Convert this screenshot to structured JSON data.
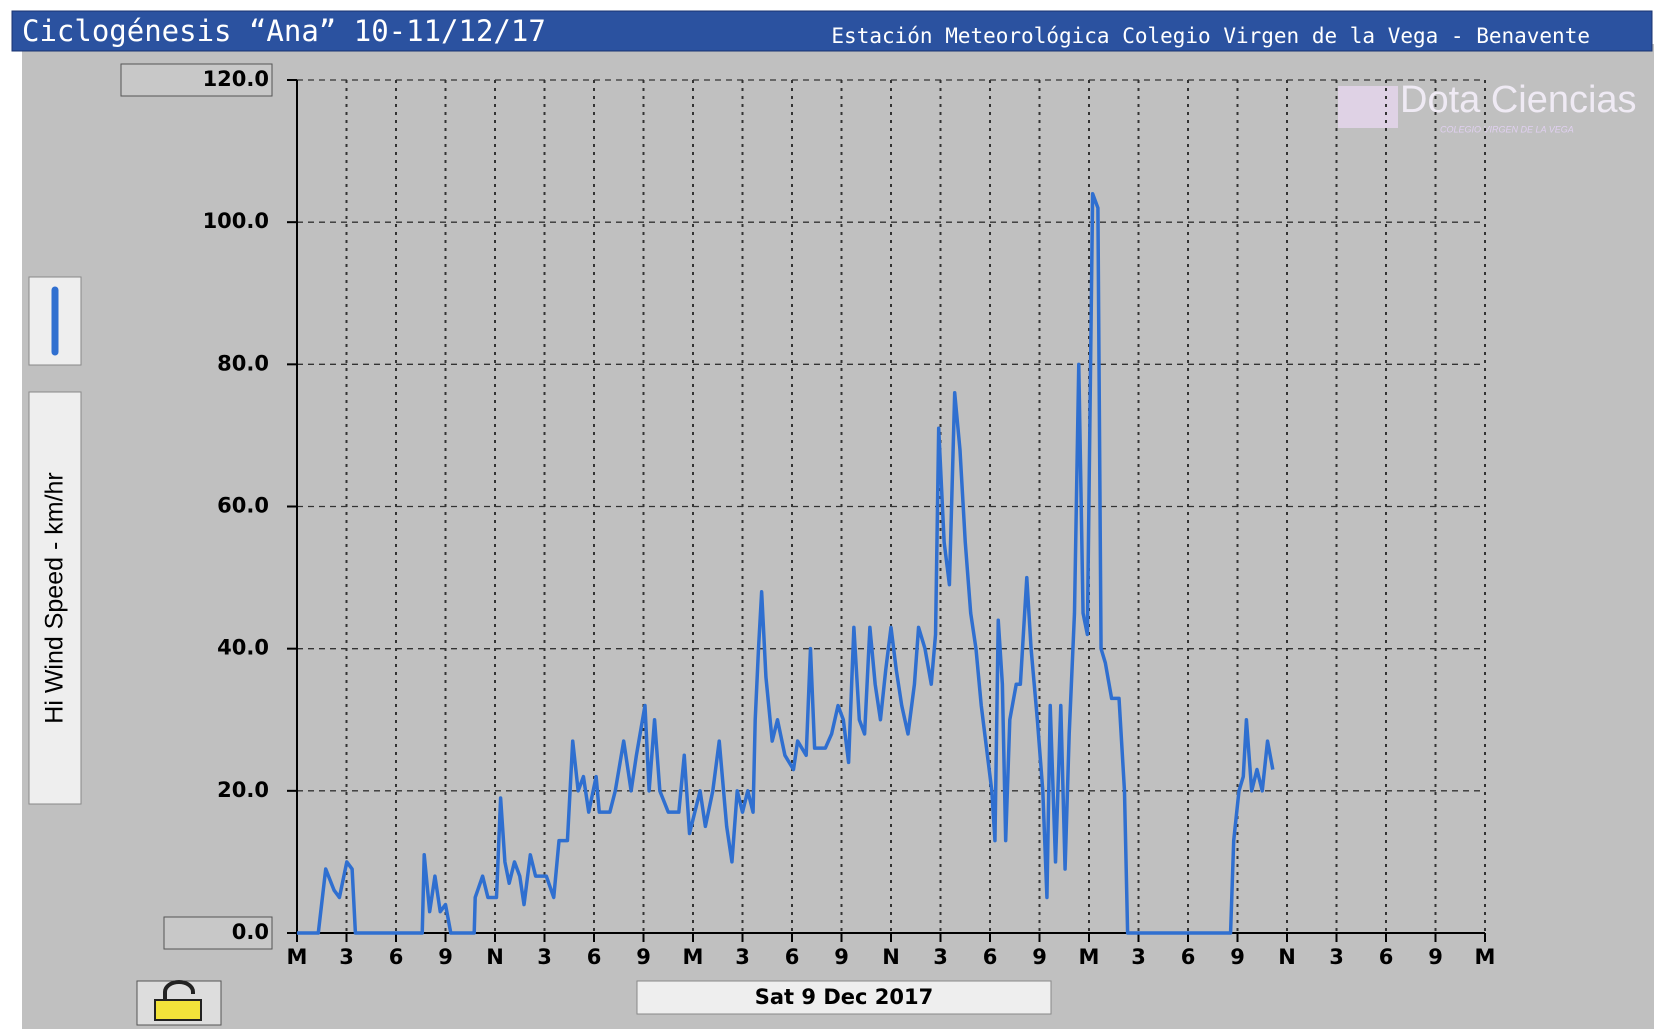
{
  "chart_data": {
    "type": "line",
    "title": "Ciclogénesis “Ana” 10-11/12/17",
    "subtitle": "Estación Meteorológica Colegio Virgen de la Vega - Benavente",
    "y_label": "Hi Wind Speed - km/hr",
    "x_label": "Sat 9 Dec 2017",
    "logo": "Dota Ciencias",
    "logo_sub": "COLEGIO VIRGEN DE LA VEGA",
    "color": "#2f6fd0",
    "grid": true,
    "xlim": [
      0,
      72
    ],
    "ylim": [
      0,
      120
    ],
    "yticks": [
      {
        "value": 0,
        "label": "0.0"
      },
      {
        "value": 20,
        "label": "20.0"
      },
      {
        "value": 40,
        "label": "40.0"
      },
      {
        "value": 60,
        "label": "60.0"
      },
      {
        "value": 80,
        "label": "80.0"
      },
      {
        "value": 100,
        "label": "100.0"
      },
      {
        "value": 120,
        "label": "120.0"
      }
    ],
    "xticks": [
      {
        "value": 0,
        "label": "M"
      },
      {
        "value": 3,
        "label": "3"
      },
      {
        "value": 6,
        "label": "6"
      },
      {
        "value": 9,
        "label": "9"
      },
      {
        "value": 12,
        "label": "N"
      },
      {
        "value": 15,
        "label": "3"
      },
      {
        "value": 18,
        "label": "6"
      },
      {
        "value": 21,
        "label": "9"
      },
      {
        "value": 24,
        "label": "M"
      },
      {
        "value": 27,
        "label": "3"
      },
      {
        "value": 30,
        "label": "6"
      },
      {
        "value": 33,
        "label": "9"
      },
      {
        "value": 36,
        "label": "N"
      },
      {
        "value": 39,
        "label": "3"
      },
      {
        "value": 42,
        "label": "6"
      },
      {
        "value": 45,
        "label": "9"
      },
      {
        "value": 48,
        "label": "M"
      },
      {
        "value": 51,
        "label": "3"
      },
      {
        "value": 54,
        "label": "6"
      },
      {
        "value": 57,
        "label": "9"
      },
      {
        "value": 60,
        "label": "N"
      },
      {
        "value": 63,
        "label": "3"
      },
      {
        "value": 66,
        "label": "6"
      },
      {
        "value": 69,
        "label": "9"
      },
      {
        "value": 72,
        "label": "M"
      }
    ],
    "x": [
      0,
      1.29,
      1.74,
      2.25,
      2.57,
      3.02,
      3.34,
      3.54,
      7.59,
      7.71,
      8.04,
      8.36,
      8.68,
      9.0,
      9.32,
      10.74,
      10.8,
      11.25,
      11.57,
      12.09,
      12.34,
      12.6,
      12.86,
      13.18,
      13.5,
      13.76,
      14.14,
      14.46,
      15.11,
      15.56,
      15.88,
      16.39,
      16.71,
      17.04,
      17.36,
      17.68,
      18.13,
      18.32,
      18.96,
      19.29,
      19.8,
      20.25,
      20.57,
      21.09,
      21.34,
      21.67,
      21.99,
      22.5,
      23.14,
      23.47,
      23.79,
      24.43,
      24.75,
      25.2,
      25.59,
      26.04,
      26.36,
      26.68,
      27.0,
      27.32,
      27.64,
      27.77,
      27.97,
      28.16,
      28.42,
      28.8,
      29.12,
      29.57,
      30.09,
      30.34,
      30.86,
      31.12,
      31.37,
      32.02,
      32.4,
      32.79,
      33.11,
      33.43,
      33.75,
      34.08,
      34.4,
      34.72,
      35.04,
      35.36,
      35.68,
      36.0,
      36.32,
      36.65,
      37.03,
      37.42,
      37.67,
      38.06,
      38.44,
      38.7,
      38.89,
      39.22,
      39.54,
      39.86,
      40.18,
      40.5,
      40.83,
      41.15,
      41.47,
      41.79,
      42.11,
      42.3,
      42.5,
      42.75,
      42.95,
      43.2,
      43.59,
      43.84,
      44.23,
      44.49,
      44.87,
      45.2,
      45.45,
      45.65,
      45.97,
      46.29,
      46.55,
      46.8,
      47.12,
      47.38,
      47.64,
      47.9,
      48.22,
      48.54,
      48.73,
      48.99,
      49.37,
      49.82,
      50.15,
      50.34,
      56.58,
      56.77,
      57.09,
      57.35,
      57.54,
      57.86,
      58.18,
      58.5,
      58.82,
      59.14
    ],
    "values": [
      0,
      0,
      9,
      6,
      5,
      10,
      9,
      0,
      0,
      11,
      3,
      8,
      3,
      4,
      0,
      0,
      5,
      8,
      5,
      5,
      19,
      10,
      7,
      10,
      8,
      4,
      11,
      8,
      8,
      5,
      13,
      13,
      27,
      20,
      22,
      17,
      22,
      17,
      17,
      20,
      27,
      20,
      25,
      32,
      20,
      30,
      20,
      17,
      17,
      25,
      14,
      20,
      15,
      20,
      27,
      15,
      10,
      20,
      17,
      20,
      17,
      30,
      40,
      48,
      36,
      27,
      30,
      25,
      23,
      27,
      25,
      40,
      26,
      26,
      28,
      32,
      30,
      24,
      43,
      30,
      28,
      43,
      35,
      30,
      37,
      43,
      37,
      32,
      28,
      35,
      43,
      40,
      35,
      42,
      71,
      55,
      49,
      76,
      68,
      55,
      45,
      40,
      32,
      26,
      20,
      13,
      44,
      35,
      13,
      30,
      35,
      35,
      50,
      40,
      30,
      20,
      5,
      32,
      10,
      32,
      9,
      28,
      45,
      80,
      45,
      42,
      104,
      102,
      40,
      38,
      33,
      33,
      20,
      0,
      0,
      13,
      20,
      22,
      30,
      20,
      23,
      20,
      27,
      23
    ]
  }
}
